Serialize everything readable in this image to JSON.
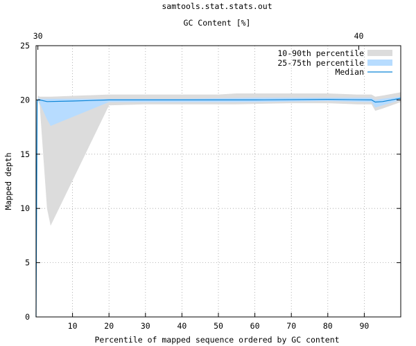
{
  "chart_data": {
    "type": "area",
    "title": "samtools.stat.stats.out",
    "xlabel": "Percentile of mapped sequence ordered by GC content",
    "ylabel": "Mapped depth",
    "x2label": "GC Content [%]",
    "xlim": [
      0,
      100
    ],
    "ylim": [
      0,
      25
    ],
    "x_ticks": [
      10,
      20,
      30,
      40,
      50,
      60,
      70,
      80,
      90
    ],
    "y_ticks": [
      0,
      5,
      10,
      15,
      20,
      25
    ],
    "x2_ticks": [
      {
        "label": "30",
        "x": 0.5
      },
      {
        "label": "40",
        "x": 88.5
      }
    ],
    "grid": true,
    "legend_position": "top-right",
    "series": [
      {
        "name": "10-90th percentile",
        "color": "#dcdcdc",
        "x": [
          0,
          0.5,
          1,
          3,
          4,
          20,
          30,
          40,
          50,
          55,
          70,
          80,
          88,
          92,
          93,
          95,
          100
        ],
        "lower": [
          0,
          20.0,
          19.5,
          10.0,
          8.4,
          19.5,
          19.6,
          19.6,
          19.6,
          19.6,
          19.7,
          19.7,
          19.6,
          19.6,
          19.0,
          19.2,
          19.8
        ],
        "upper": [
          0,
          20.4,
          20.3,
          20.3,
          20.3,
          20.5,
          20.5,
          20.5,
          20.5,
          20.6,
          20.6,
          20.6,
          20.5,
          20.5,
          20.3,
          20.4,
          20.7
        ]
      },
      {
        "name": "25-75th percentile",
        "color": "#b7dcff",
        "x": [
          0,
          0.5,
          1,
          3,
          4,
          20,
          40,
          60,
          80,
          92,
          93,
          95,
          100
        ],
        "lower": [
          0,
          19.9,
          19.7,
          18.2,
          17.6,
          19.8,
          19.8,
          19.8,
          19.9,
          19.8,
          19.3,
          19.5,
          20.0
        ],
        "upper": [
          0,
          20.2,
          20.1,
          20.1,
          20.1,
          20.1,
          20.1,
          20.2,
          20.2,
          20.2,
          20.0,
          20.1,
          20.3
        ]
      },
      {
        "name": "Median",
        "color": "#0a84d6",
        "x": [
          0,
          0.3,
          0.5,
          1,
          3,
          10,
          20,
          40,
          60,
          80,
          92,
          93,
          95,
          100
        ],
        "y": [
          0,
          19.9,
          20.0,
          20.0,
          19.85,
          19.9,
          20.0,
          20.0,
          20.0,
          20.05,
          20.0,
          19.8,
          19.85,
          20.15
        ]
      }
    ]
  }
}
